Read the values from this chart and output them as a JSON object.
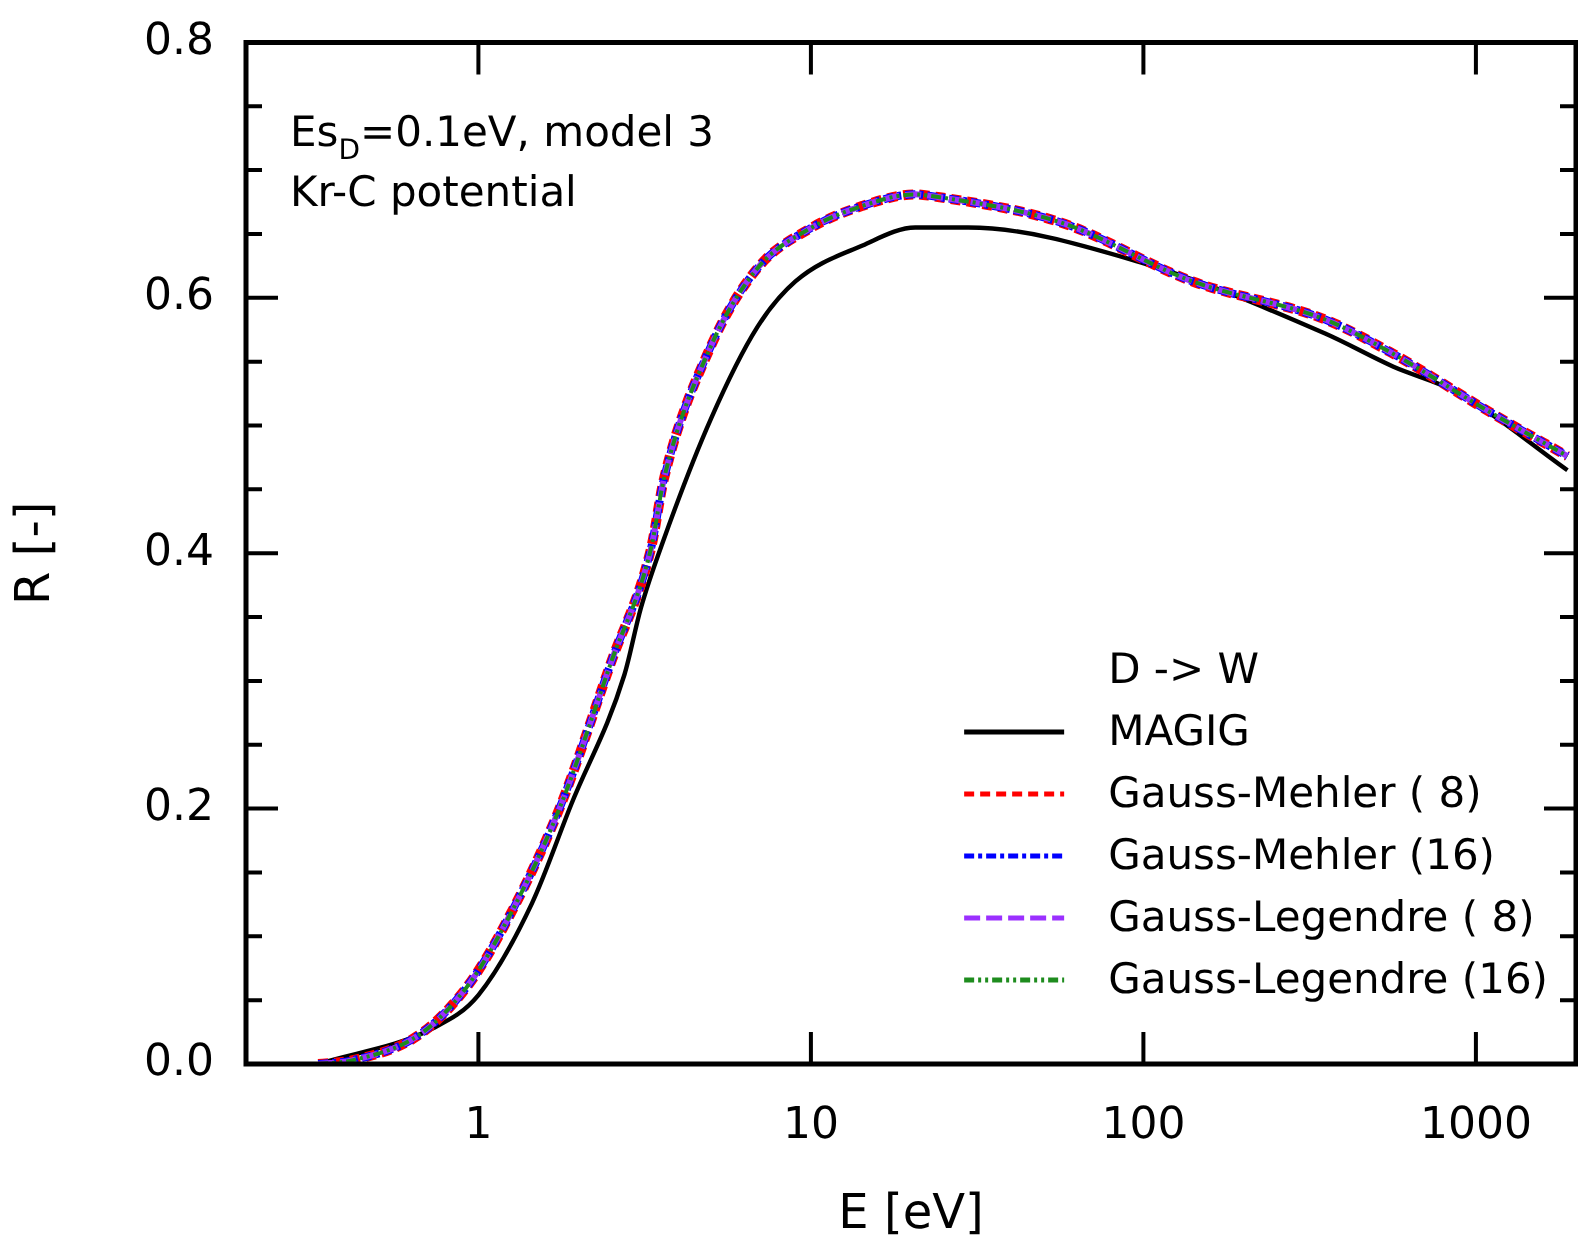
{
  "chart_data": {
    "type": "line",
    "xlabel": "E [eV]",
    "ylabel": "R [-]",
    "legend_title": "D -> W",
    "annotations": [
      "Es$_{D}$=0.1eV, model 3",
      "Kr-C potential"
    ],
    "log": "x",
    "xlim": [
      0.2,
      2000
    ],
    "xticks": [
      1,
      10,
      100,
      1000
    ],
    "ylim": [
      0,
      0.8
    ],
    "yticks": [
      {
        "value": 0,
        "label": "0.0"
      },
      {
        "value": 0.05,
        "label": null
      },
      {
        "value": 0.1,
        "label": null
      },
      {
        "value": 0.15,
        "label": null
      },
      {
        "value": 0.2,
        "label": "0.2"
      },
      {
        "value": 0.25,
        "label": null
      },
      {
        "value": 0.3,
        "label": null
      },
      {
        "value": 0.35,
        "label": null
      },
      {
        "value": 0.4,
        "label": "0.4"
      },
      {
        "value": 0.45,
        "label": null
      },
      {
        "value": 0.5,
        "label": null
      },
      {
        "value": 0.55,
        "label": null
      },
      {
        "value": 0.6,
        "label": "0.6"
      },
      {
        "value": 0.65,
        "label": null
      },
      {
        "value": 0.7,
        "label": null
      },
      {
        "value": 0.75,
        "label": null
      },
      {
        "value": 0.8,
        "label": "0.8"
      }
    ],
    "grid": false,
    "legend": "bottom right",
    "marker": "none",
    "series": [
      {
        "name": "MAGIG",
        "color": "#000000",
        "line_style": "solid",
        "x": [
          0.33,
          0.73,
          1.0,
          1.45,
          1.9,
          2.75,
          3.08,
          3.6,
          5.0,
          6.9,
          9.0,
          14.3,
          20.6,
          29.7,
          97.5,
          352,
          565,
          878,
          1885
        ],
        "values": [
          0,
          0.028,
          0.054,
          0.126,
          0.203,
          0.305,
          0.357,
          0.41,
          0.505,
          0.577,
          0.613,
          0.641,
          0.655,
          0.655,
          0.628,
          0.572,
          0.546,
          0.526,
          0.465
        ]
      },
      {
        "name": "Gauss-Mehler ( 8)",
        "color": "#ff0000",
        "line_style": "dashed",
        "x": [
          0.33,
          0.42,
          0.665,
          0.915,
          1.15,
          1.74,
          2.51,
          3.3,
          3.62,
          5.0,
          6.9,
          9.9,
          14.3,
          20.6,
          22.6,
          56.4,
          140,
          352,
          565,
          1110,
          1885
        ],
        "values": [
          0,
          0.003,
          0.023,
          0.059,
          0.1,
          0.198,
          0.315,
          0.403,
          0.459,
          0.562,
          0.623,
          0.654,
          0.672,
          0.681,
          0.68,
          0.659,
          0.613,
          0.583,
          0.556,
          0.51,
          0.476
        ]
      },
      {
        "name": "Gauss-Mehler (16)",
        "color": "#0000ff",
        "line_style": "dashed",
        "x": [
          0.33,
          0.42,
          0.665,
          0.915,
          1.15,
          1.74,
          2.51,
          3.3,
          3.62,
          5.0,
          6.9,
          9.9,
          14.3,
          20.6,
          22.6,
          56.4,
          140,
          352,
          565,
          1110,
          1885
        ],
        "values": [
          0,
          0.003,
          0.023,
          0.059,
          0.1,
          0.198,
          0.315,
          0.403,
          0.459,
          0.562,
          0.623,
          0.654,
          0.672,
          0.681,
          0.68,
          0.659,
          0.613,
          0.583,
          0.556,
          0.51,
          0.476
        ]
      },
      {
        "name": "Gauss-Legendre ( 8)",
        "color": "#9b30ff",
        "line_style": "dashed",
        "x": [
          0.33,
          0.42,
          0.665,
          0.915,
          1.15,
          1.74,
          2.51,
          3.3,
          3.62,
          5.0,
          6.9,
          9.9,
          14.3,
          20.6,
          22.6,
          56.4,
          140,
          352,
          565,
          1110,
          1885
        ],
        "values": [
          0,
          0.003,
          0.023,
          0.059,
          0.1,
          0.198,
          0.315,
          0.403,
          0.459,
          0.562,
          0.623,
          0.654,
          0.672,
          0.681,
          0.68,
          0.659,
          0.613,
          0.583,
          0.556,
          0.51,
          0.476
        ]
      },
      {
        "name": "Gauss-Legendre (16)",
        "color": "#1e8c1e",
        "line_style": "dashed",
        "x": [
          0.33,
          0.42,
          0.665,
          0.915,
          1.15,
          1.74,
          2.51,
          3.3,
          3.62,
          5.0,
          6.9,
          9.9,
          14.3,
          20.6,
          22.6,
          56.4,
          140,
          352,
          565,
          1110,
          1885
        ],
        "values": [
          0,
          0.003,
          0.023,
          0.059,
          0.1,
          0.198,
          0.315,
          0.403,
          0.459,
          0.562,
          0.623,
          0.654,
          0.672,
          0.681,
          0.68,
          0.659,
          0.613,
          0.583,
          0.556,
          0.51,
          0.476
        ]
      }
    ]
  }
}
